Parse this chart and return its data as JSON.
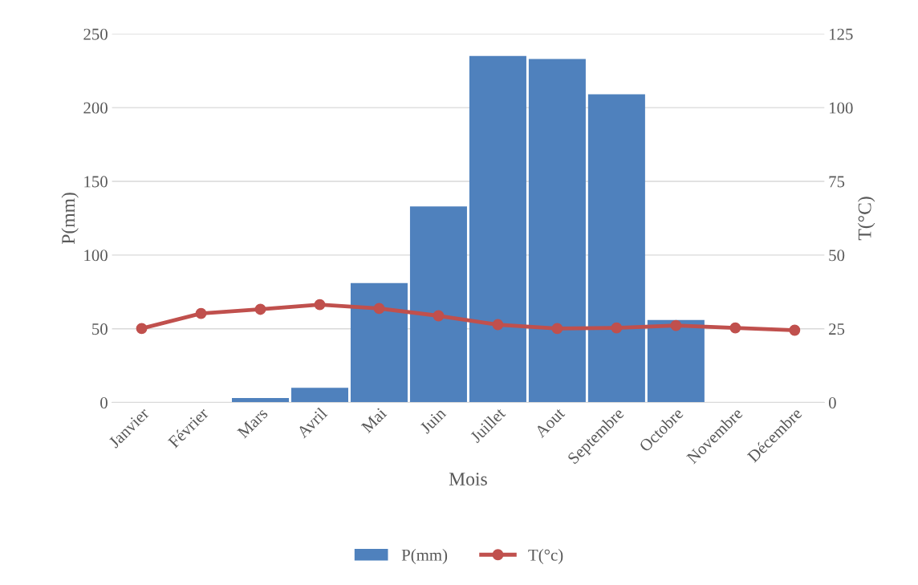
{
  "chart_data": {
    "type": "bar",
    "xlabel": "Mois",
    "ylabel": "P(mm)",
    "y2label": "T(°C)",
    "categories": [
      "Janvier",
      "Février",
      "Mars",
      "Avril",
      "Mai",
      "Juin",
      "Juillet",
      "Aout",
      "Septembre",
      "Octobre",
      "Novembre",
      "Décembre"
    ],
    "series": [
      {
        "name": "P(mm)",
        "color": "#4f81bd",
        "values": [
          0,
          0,
          3,
          10,
          81,
          133,
          235,
          233,
          209,
          56,
          0,
          0
        ]
      },
      {
        "name": "T(°c)",
        "type": "line",
        "axis": "y2",
        "color": "#c0504d",
        "marker": "circle",
        "line_style": "solid",
        "values": [
          25.1,
          30.2,
          31.6,
          33.2,
          31.9,
          29.4,
          26.4,
          25.1,
          25.3,
          26.1,
          25.3,
          24.5
        ]
      }
    ],
    "ylim": [
      0,
      250
    ],
    "yticks": [
      0,
      50,
      100,
      150,
      200,
      250
    ],
    "y2lim": [
      0,
      125
    ],
    "y2ticks": [
      0,
      25,
      50,
      75,
      100,
      125
    ],
    "grid": "y",
    "legend": "bottom"
  }
}
